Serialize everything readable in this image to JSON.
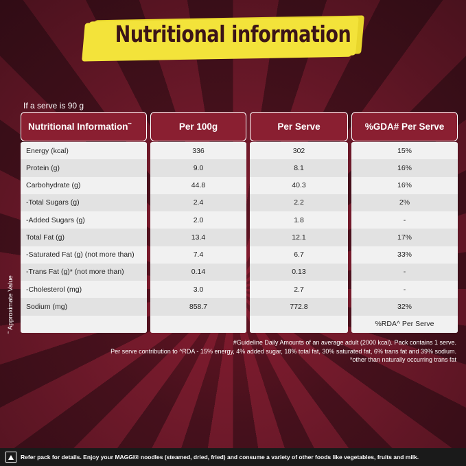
{
  "title": "Nutritional information",
  "serve_note": "If a serve is 90 g",
  "headers": [
    "Nutritional Information˜",
    "Per 100g",
    "Per Serve",
    "%GDA# Per Serve"
  ],
  "rows": [
    {
      "name": "Energy (kcal)",
      "per100": "336",
      "serve": "302",
      "gda": "15%"
    },
    {
      "name": "Protein (g)",
      "per100": "9.0",
      "serve": "8.1",
      "gda": "16%"
    },
    {
      "name": "Carbohydrate (g)",
      "per100": "44.8",
      "serve": "40.3",
      "gda": "16%"
    },
    {
      "name": "-Total Sugars (g)",
      "per100": "2.4",
      "serve": "2.2",
      "gda": "2%"
    },
    {
      "name": "-Added Sugars (g)",
      "per100": "2.0",
      "serve": "1.8",
      "gda": "-"
    },
    {
      "name": "Total Fat (g)",
      "per100": "13.4",
      "serve": "12.1",
      "gda": "17%"
    },
    {
      "name": "-Saturated Fat (g) (not more than)",
      "per100": "7.4",
      "serve": "6.7",
      "gda": "33%"
    },
    {
      "name": "-Trans Fat (g)* (not more than)",
      "per100": "0.14",
      "serve": "0.13",
      "gda": "-"
    },
    {
      "name": "-Cholesterol (mg)",
      "per100": "3.0",
      "serve": "2.7",
      "gda": "-"
    },
    {
      "name": "Sodium (mg)",
      "per100": "858.7",
      "serve": "772.8",
      "gda": "32%"
    },
    {
      "name": "",
      "per100": "",
      "serve": "",
      "gda": "%RDA^ Per Serve"
    }
  ],
  "vertical_note": "˜ Approximate Value",
  "footnotes": [
    "#Guideline Daily Amounts of an average adult  (2000 kcal). Pack contains 1 serve.",
    "Per serve contribution to ^RDA - 15% energy, 4% added sugar, 18% total fat, 30% saturated fat, 6% trans fat and 39% sodium.",
    "*other than naturally occurring trans fat"
  ],
  "bottom_note": "Refer pack for details. Enjoy your MAGGI® noodles (steamed, dried, fried) and consume a variety of other foods like vegetables, fruits and milk.",
  "colors": {
    "header_bg": "#8a1f31",
    "banner": "#f3e33a",
    "title_text": "#3b1418"
  }
}
